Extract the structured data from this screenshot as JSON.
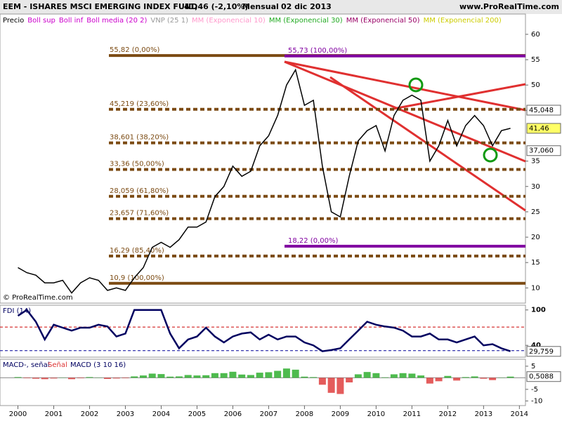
{
  "header": {
    "title": "EEM - ISHARES MSCI EMERGING INDEX FUND",
    "quote": "41,46 (-2,10%)",
    "period": "Mensual",
    "date": "02 dic 2013",
    "site": "www.ProRealTime.com",
    "copyright": "© ProRealTime.com"
  },
  "indicators": [
    {
      "text": "Precio",
      "color": "#000000"
    },
    {
      "text": "Boll sup",
      "color": "#cc00cc"
    },
    {
      "text": "Boll inf",
      "color": "#cc00cc"
    },
    {
      "text": "Boll media (20 2)",
      "color": "#cc00cc"
    },
    {
      "text": "VNP (25 1)",
      "color": "#999999"
    },
    {
      "text": "MM (Exponencial 10)",
      "color": "#ff99cc"
    },
    {
      "text": "MM (Exponencial 30)",
      "color": "#22aa22"
    },
    {
      "text": "MM (Exponencial 50)",
      "color": "#990066"
    },
    {
      "text": "MM (Exponencial 200)",
      "color": "#cccc00"
    }
  ],
  "x_axis": {
    "xlim": [
      1999.5,
      2014.17
    ],
    "xticks": [
      2000,
      2001,
      2002,
      2003,
      2004,
      2005,
      2006,
      2007,
      2008,
      2009,
      2010,
      2011,
      2012,
      2013,
      2014
    ]
  },
  "chart_data": [
    {
      "type": "line",
      "series": [
        {
          "name": "Precio",
          "color": "#000000",
          "values": [
            14,
            13,
            12.5,
            11,
            11,
            11.5,
            9,
            11,
            12,
            11.5,
            9.5,
            10,
            9.5,
            12,
            14,
            18,
            19,
            18,
            19.5,
            22,
            22,
            23,
            28,
            30,
            34,
            32,
            33,
            38,
            40,
            44,
            50,
            53,
            46,
            47,
            34,
            25,
            24,
            32,
            39,
            41,
            42,
            37,
            44,
            47,
            48,
            47,
            35,
            38,
            43,
            38,
            42,
            44,
            42,
            38,
            41,
            41.46
          ]
        }
      ],
      "x": [
        2000,
        2000.25,
        2000.5,
        2000.75,
        2001,
        2001.25,
        2001.5,
        2001.75,
        2002,
        2002.25,
        2002.5,
        2002.75,
        2003,
        2003.25,
        2003.5,
        2003.75,
        2004,
        2004.25,
        2004.5,
        2004.75,
        2005,
        2005.25,
        2005.5,
        2005.75,
        2006,
        2006.25,
        2006.5,
        2006.75,
        2007,
        2007.25,
        2007.5,
        2007.75,
        2008,
        2008.25,
        2008.5,
        2008.75,
        2009,
        2009.25,
        2009.5,
        2009.75,
        2010,
        2010.25,
        2010.5,
        2010.75,
        2011,
        2011.25,
        2011.5,
        2011.75,
        2012,
        2012.25,
        2012.5,
        2012.75,
        2013,
        2013.25,
        2013.5,
        2013.75
      ],
      "ylim": [
        7,
        64
      ],
      "yticks": [
        10,
        15,
        20,
        25,
        30,
        35,
        45,
        50,
        55,
        60
      ],
      "levels": [
        {
          "value": 55.82,
          "label": "55,82 (0,00%)",
          "color": "#7b4a12"
        },
        {
          "value": 45.219,
          "label": "45,219 (23,60%)",
          "color": "#7b4a12"
        },
        {
          "value": 38.601,
          "label": "38,601 (38,20%)",
          "color": "#7b4a12"
        },
        {
          "value": 33.36,
          "label": "33,36 (50,00%)",
          "color": "#7b4a12"
        },
        {
          "value": 28.059,
          "label": "28,059 (61,80%)",
          "color": "#7b4a12"
        },
        {
          "value": 23.657,
          "label": "23,657 (71,60%)",
          "color": "#7b4a12"
        },
        {
          "value": 16.29,
          "label": "16,29 (85,40%)",
          "color": "#7b4a12"
        },
        {
          "value": 10.9,
          "label": "10,9 (100,00%)",
          "color": "#7b4a12"
        }
      ],
      "levels2": [
        {
          "value": 55.73,
          "label": "55,73 (100,00%)",
          "color": "#8000a0"
        },
        {
          "value": 18.22,
          "label": "18,22 (0,00%)",
          "color": "#8000a0"
        }
      ],
      "markers": [
        {
          "value": 45.048,
          "label": "45,048",
          "color": "#ffffff"
        },
        {
          "value": 41.46,
          "label": "41,46",
          "color": "#ffff66"
        },
        {
          "value": 37.06,
          "label": "37,060",
          "color": "#ffffff"
        }
      ]
    },
    {
      "type": "line",
      "title": "FDI (14)",
      "series": [
        {
          "name": "FDI",
          "color": "#000060",
          "values": [
            90,
            100,
            80,
            50,
            75,
            70,
            65,
            70,
            70,
            75,
            72,
            55,
            60,
            100,
            100,
            100,
            100,
            60,
            35,
            50,
            55,
            70,
            55,
            45,
            55,
            60,
            62,
            50,
            58,
            50,
            55,
            55,
            45,
            40,
            30,
            32,
            35,
            50,
            65,
            80,
            75,
            72,
            70,
            65,
            55,
            55,
            60,
            50,
            50,
            45,
            50,
            55,
            40,
            42,
            35,
            30
          ]
        }
      ],
      "x": [
        2000,
        2000.25,
        2000.5,
        2000.75,
        2001,
        2001.25,
        2001.5,
        2001.75,
        2002,
        2002.25,
        2002.5,
        2002.75,
        2003,
        2003.25,
        2003.5,
        2003.75,
        2004,
        2004.25,
        2004.5,
        2004.75,
        2005,
        2005.25,
        2005.5,
        2005.75,
        2006,
        2006.25,
        2006.5,
        2006.75,
        2007,
        2007.25,
        2007.5,
        2007.75,
        2008,
        2008.25,
        2008.5,
        2008.75,
        2009,
        2009.25,
        2009.5,
        2009.75,
        2010,
        2010.25,
        2010.5,
        2010.75,
        2011,
        2011.25,
        2011.5,
        2011.75,
        2012,
        2012.25,
        2012.5,
        2012.75,
        2013,
        2013.25,
        2013.5,
        2013.75
      ],
      "ylim": [
        20,
        108
      ],
      "yticks": [
        100,
        40
      ],
      "levels": [
        {
          "value": 71,
          "color": "#cc0000"
        },
        {
          "value": 31,
          "color": "#000099"
        }
      ],
      "markers": [
        {
          "value": 29.759,
          "label": "29,759",
          "color": "#ffffff"
        }
      ]
    },
    {
      "type": "bar",
      "title": "MACD-, señal",
      "title2": "Señal",
      "title3": "MACD (3 10 16)",
      "series": [
        {
          "name": "MACD",
          "color": "#22aa22",
          "neg_color": "#dd3333",
          "values": [
            0.3,
            -0.2,
            -0.4,
            -0.6,
            -0.3,
            0.1,
            -0.6,
            -0.2,
            0.3,
            0.1,
            -0.5,
            -0.3,
            -0.2,
            0.6,
            1,
            1.8,
            1.6,
            0.5,
            0.6,
            1.2,
            1,
            1.1,
            2,
            2,
            2.6,
            1.4,
            1.2,
            2.2,
            2.4,
            3,
            4,
            3.5,
            0.5,
            0.3,
            -3,
            -6.5,
            -7,
            -2,
            1.5,
            2.5,
            2,
            0.2,
            1.5,
            2,
            1.8,
            1,
            -2.5,
            -1.5,
            0.8,
            -1.2,
            0.3,
            0.6,
            -0.4,
            -1,
            0.1,
            0.51
          ]
        }
      ],
      "x": [
        2000,
        2000.25,
        2000.5,
        2000.75,
        2001,
        2001.25,
        2001.5,
        2001.75,
        2002,
        2002.25,
        2002.5,
        2002.75,
        2003,
        2003.25,
        2003.5,
        2003.75,
        2004,
        2004.25,
        2004.5,
        2004.75,
        2005,
        2005.25,
        2005.5,
        2005.75,
        2006,
        2006.25,
        2006.5,
        2006.75,
        2007,
        2007.25,
        2007.5,
        2007.75,
        2008,
        2008.25,
        2008.5,
        2008.75,
        2009,
        2009.25,
        2009.5,
        2009.75,
        2010,
        2010.25,
        2010.5,
        2010.75,
        2011,
        2011.25,
        2011.5,
        2011.75,
        2012,
        2012.25,
        2012.5,
        2012.75,
        2013,
        2013.25,
        2013.5,
        2013.75
      ],
      "ylim": [
        -12,
        8
      ],
      "yticks": [
        5,
        -5,
        -10
      ],
      "markers": [
        {
          "value": 0.5088,
          "label": "0,5088",
          "color": "#ffffff"
        }
      ]
    }
  ]
}
